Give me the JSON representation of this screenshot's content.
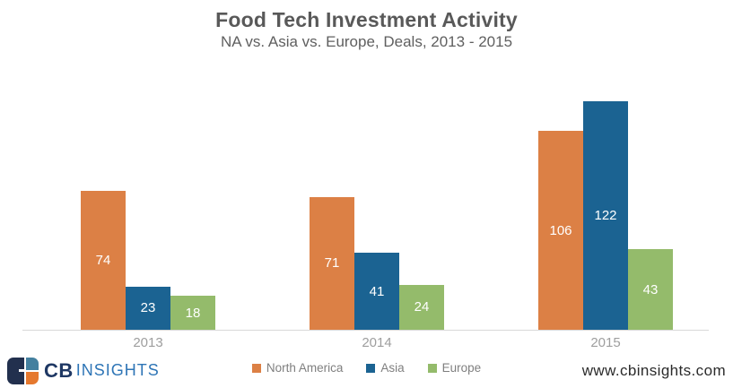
{
  "title": "Food Tech Investment Activity",
  "subtitle": "NA vs. Asia vs. Europe, Deals, 2013 - 2015",
  "chart_data": {
    "type": "bar",
    "categories": [
      "2013",
      "2014",
      "2015"
    ],
    "series": [
      {
        "name": "North America",
        "color": "#DC8045",
        "values": [
          74,
          71,
          106
        ]
      },
      {
        "name": "Asia",
        "color": "#1B6392",
        "values": [
          23,
          41,
          122
        ]
      },
      {
        "name": "Europe",
        "color": "#94BB6B",
        "values": [
          18,
          24,
          43
        ]
      }
    ],
    "ylim": [
      0,
      130
    ],
    "grid": false,
    "legend_position": "bottom",
    "value_label_color": "#FFFFFF",
    "axis_line_color": "#D9D9D9",
    "xlabel": "",
    "ylabel": ""
  },
  "footer": {
    "logo_cb": "CB",
    "logo_insights": "INSIGHTS",
    "website": "www.cbinsights.com"
  },
  "colors": {
    "title_text": "#595959",
    "tick_label": "#9E9E9E",
    "legend_text": "#7F7F7F",
    "logo_navy": "#22304E",
    "logo_teal": "#44809F",
    "logo_orange": "#E5782E",
    "logo_cb_text": "#1F3864",
    "logo_insights_text": "#2E75B6"
  }
}
